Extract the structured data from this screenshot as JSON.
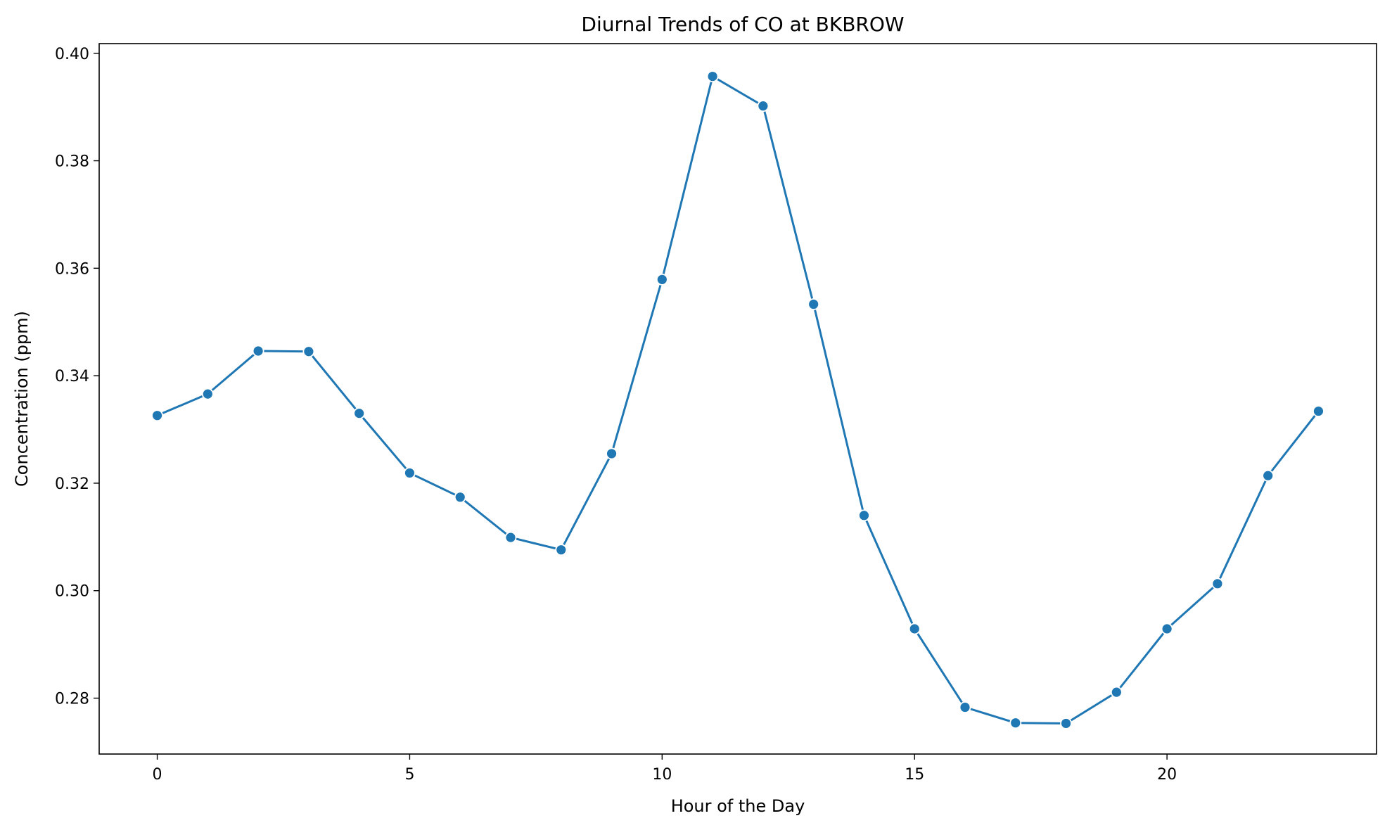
{
  "chart_data": {
    "type": "line",
    "title": "Diurnal Trends of CO at BKBROW",
    "xlabel": "Hour of the Day",
    "ylabel": "Concentration (ppm)",
    "xlim": [
      -1.15,
      24.15
    ],
    "ylim": [
      0.2696,
      0.4018
    ],
    "x_ticks": [
      0,
      5,
      10,
      15,
      20
    ],
    "x_tick_labels": [
      "0",
      "5",
      "10",
      "15",
      "20"
    ],
    "y_ticks": [
      0.28,
      0.3,
      0.32,
      0.34,
      0.36,
      0.38,
      0.4
    ],
    "y_tick_labels": [
      "0.28",
      "0.30",
      "0.32",
      "0.34",
      "0.36",
      "0.38",
      "0.40"
    ],
    "grid": false,
    "legend": "none",
    "color": "#1f77b4",
    "marker": "circle",
    "x": [
      0,
      1,
      2,
      3,
      4,
      5,
      6,
      7,
      8,
      9,
      10,
      11,
      12,
      13,
      14,
      15,
      16,
      17,
      18,
      19,
      20,
      21,
      22,
      23
    ],
    "series": [
      {
        "values": [
          0.3326,
          0.3366,
          0.3446,
          0.3445,
          0.333,
          0.3219,
          0.3174,
          0.3099,
          0.3076,
          0.3255,
          0.3579,
          0.3957,
          0.3902,
          0.3533,
          0.314,
          0.2929,
          0.2783,
          0.2754,
          0.2753,
          0.2811,
          0.2929,
          0.3013,
          0.3214,
          0.3334
        ]
      }
    ]
  }
}
